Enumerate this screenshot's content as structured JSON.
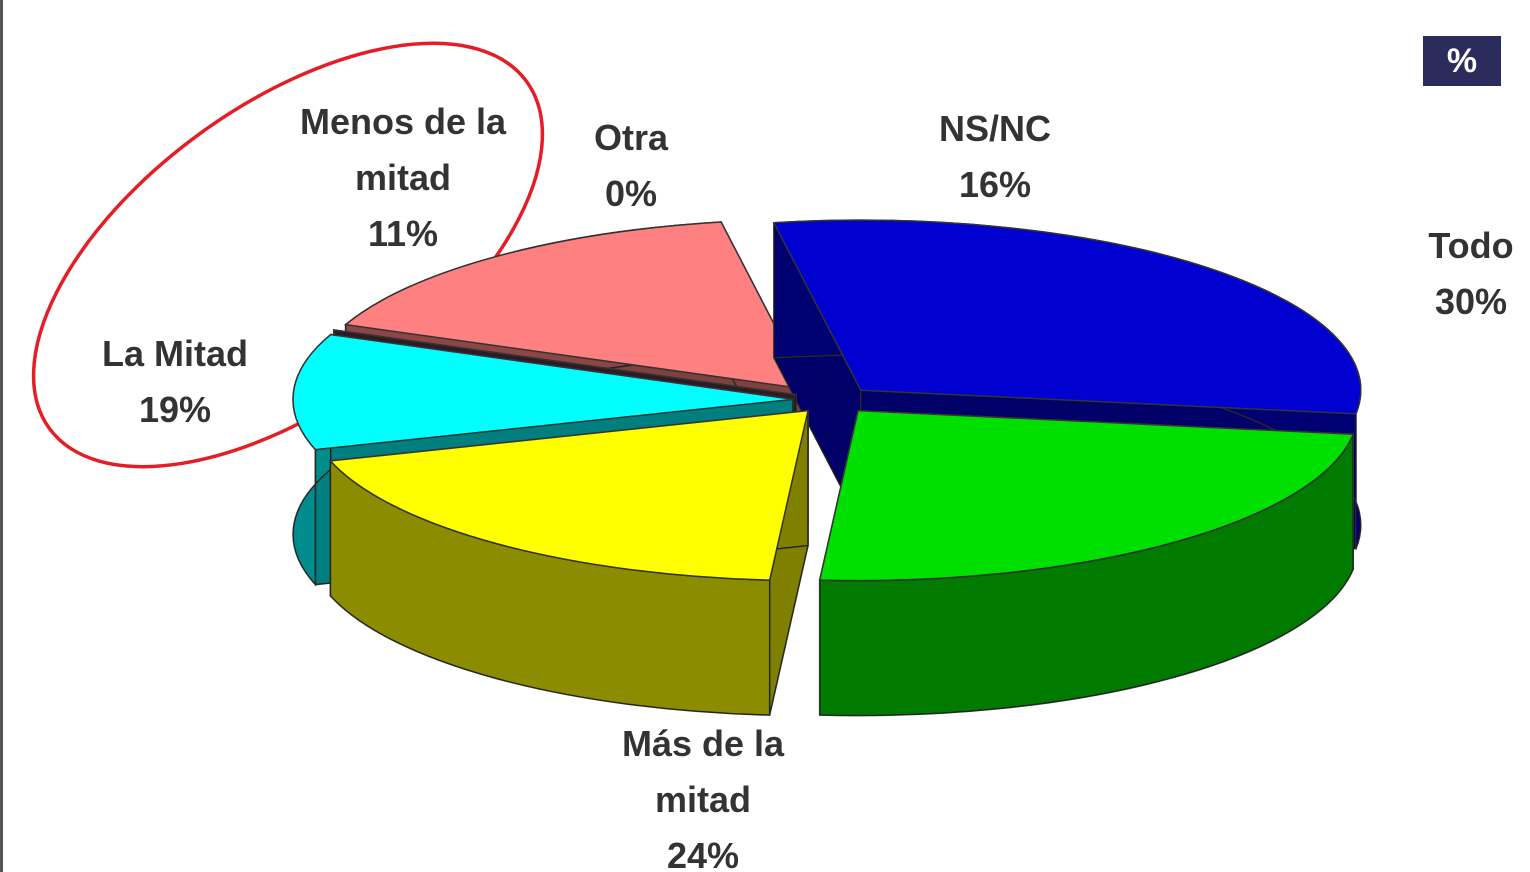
{
  "chart_data": {
    "type": "pie",
    "unit_badge": "%",
    "categories": [
      "Todo",
      "Más de la mitad",
      "La Mitad",
      "Menos de la mitad",
      "Otra",
      "NS/NC"
    ],
    "values": [
      30,
      24,
      19,
      11,
      0,
      16
    ],
    "value_labels": [
      "30%",
      "24%",
      "19%",
      "11%",
      "0%",
      "16%"
    ],
    "colors": [
      "#0000d0",
      "#00e000",
      "#ffff00",
      "#00ffff",
      "#5a3448",
      "#ff8080"
    ]
  }
}
